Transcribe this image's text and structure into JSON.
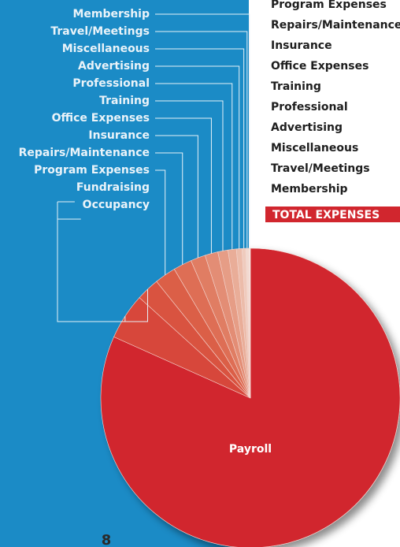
{
  "chart_data": {
    "type": "pie",
    "categories": [
      "Payroll",
      "Occupancy",
      "Fundraising",
      "Program Expenses",
      "Repairs/Maintenance",
      "Insurance",
      "Office Expenses",
      "Training",
      "Professional",
      "Advertising",
      "Miscellaneous",
      "Travel/Meetings",
      "Membership"
    ],
    "values": [
      81.7,
      5,
      2.5,
      2.3,
      2,
      1.6,
      1.4,
      1.1,
      0.9,
      0.6,
      0.4,
      0.3,
      0.2
    ],
    "colors": [
      "#d1262e",
      "#d7473a",
      "#d9533f",
      "#db5f47",
      "#de6e55",
      "#e07d63",
      "#e38d74",
      "#e69d86",
      "#e9ad98",
      "#ecbcaa",
      "#efcbbd",
      "#f2dad0",
      "#f5e7e1"
    ],
    "total_label": "TOTAL EXPENSES"
  },
  "page_number": "8"
}
